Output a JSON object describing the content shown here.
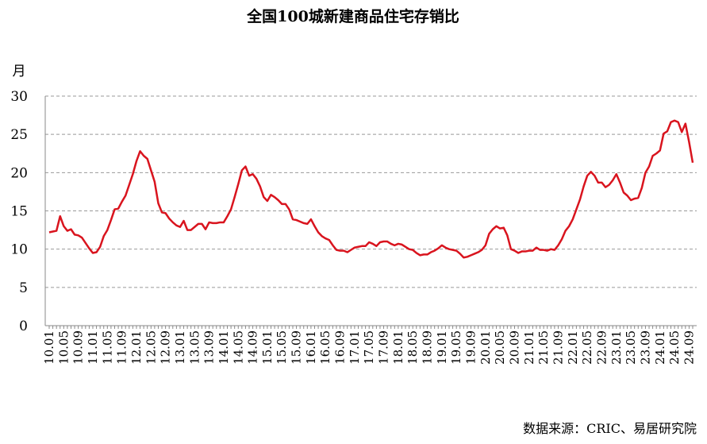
{
  "chart_data": {
    "type": "line",
    "title": "全国100城新建商品住宅存销比",
    "y_label": "月",
    "source": "数据来源：CRIC、易居研究院",
    "color": "#d9141e",
    "grid": true,
    "ylim": [
      0,
      30
    ],
    "yticks": [
      0,
      5,
      10,
      15,
      20,
      25,
      30
    ],
    "categories": [
      "10.01",
      null,
      null,
      null,
      "10.05",
      null,
      null,
      null,
      "10.09",
      null,
      null,
      null,
      "11.01",
      null,
      null,
      null,
      "11.05",
      null,
      null,
      null,
      "11.09",
      null,
      null,
      null,
      "12.01",
      null,
      null,
      null,
      "12.05",
      null,
      null,
      null,
      "12.09",
      null,
      null,
      null,
      "13.01",
      null,
      null,
      null,
      "13.05",
      null,
      null,
      null,
      "13.09",
      null,
      null,
      null,
      "14.01",
      null,
      null,
      null,
      "14.05",
      null,
      null,
      null,
      "14.09",
      null,
      null,
      null,
      "15.01",
      null,
      null,
      null,
      "15.05",
      null,
      null,
      null,
      "15.09",
      null,
      null,
      null,
      "16.01",
      null,
      null,
      null,
      "16.05",
      null,
      null,
      null,
      "16.09",
      null,
      null,
      null,
      "17.01",
      null,
      null,
      null,
      "17.05",
      null,
      null,
      null,
      "17.09",
      null,
      null,
      null,
      "18.01",
      null,
      null,
      null,
      "18.05",
      null,
      null,
      null,
      "18.09",
      null,
      null,
      null,
      "19.01",
      null,
      null,
      null,
      "19.05",
      null,
      null,
      null,
      "19.09",
      null,
      null,
      null,
      "20.01",
      null,
      null,
      null,
      "20.05",
      null,
      null,
      null,
      "20.09",
      null,
      null,
      null,
      "21.01",
      null,
      null,
      null,
      "21.05",
      null,
      null,
      null,
      "21.09",
      null,
      null,
      null,
      "22.01",
      null,
      null,
      null,
      "22.05",
      null,
      null,
      null,
      "22.09",
      null,
      null,
      null,
      "23.01",
      null,
      null,
      null,
      "23.05",
      null,
      null,
      null,
      "23.09",
      null,
      null,
      null,
      "24.01",
      null,
      null,
      null,
      "24.05",
      null,
      null,
      null,
      "24.09",
      null
    ],
    "values": [
      12.2,
      12.3,
      12.4,
      14.3,
      13.0,
      12.4,
      12.6,
      11.9,
      11.8,
      11.5,
      10.8,
      10.1,
      9.5,
      9.6,
      10.3,
      11.7,
      12.5,
      13.8,
      15.2,
      15.3,
      16.2,
      17.0,
      18.4,
      19.8,
      21.5,
      22.8,
      22.2,
      21.8,
      20.3,
      18.8,
      16.0,
      14.8,
      14.7,
      14.0,
      13.5,
      13.1,
      12.9,
      13.7,
      12.5,
      12.5,
      12.9,
      13.3,
      13.3,
      12.6,
      13.5,
      13.4,
      13.4,
      13.5,
      13.5,
      14.3,
      15.2,
      16.8,
      18.5,
      20.3,
      20.8,
      19.6,
      19.8,
      19.2,
      18.2,
      16.8,
      16.3,
      17.1,
      16.8,
      16.4,
      15.9,
      15.9,
      15.2,
      13.9,
      13.8,
      13.6,
      13.4,
      13.3,
      13.9,
      13.0,
      12.2,
      11.7,
      11.4,
      11.2,
      10.5,
      9.9,
      9.8,
      9.8,
      9.6,
      9.9,
      10.2,
      10.3,
      10.4,
      10.4,
      10.9,
      10.7,
      10.4,
      10.9,
      11.0,
      11.0,
      10.7,
      10.5,
      10.7,
      10.6,
      10.3,
      10.0,
      9.9,
      9.5,
      9.2,
      9.3,
      9.3,
      9.6,
      9.8,
      10.1,
      10.5,
      10.2,
      10.0,
      9.9,
      9.8,
      9.4,
      8.9,
      9.0,
      9.2,
      9.4,
      9.6,
      9.9,
      10.5,
      12.0,
      12.6,
      13.0,
      12.7,
      12.8,
      11.8,
      10.0,
      9.8,
      9.5,
      9.7,
      9.7,
      9.8,
      9.8,
      10.2,
      9.9,
      9.9,
      9.8,
      10.0,
      9.9,
      10.5,
      11.3,
      12.4,
      13.0,
      13.9,
      15.2,
      16.5,
      18.2,
      19.6,
      20.1,
      19.6,
      18.7,
      18.7,
      18.1,
      18.4,
      19.0,
      19.8,
      18.7,
      17.4,
      17.0,
      16.4,
      16.6,
      16.7,
      18.0,
      20.0,
      20.8,
      22.2,
      22.5,
      22.9,
      25.1,
      25.4,
      26.6,
      26.8,
      26.6,
      25.3,
      26.4,
      24.0,
      21.3
    ]
  }
}
